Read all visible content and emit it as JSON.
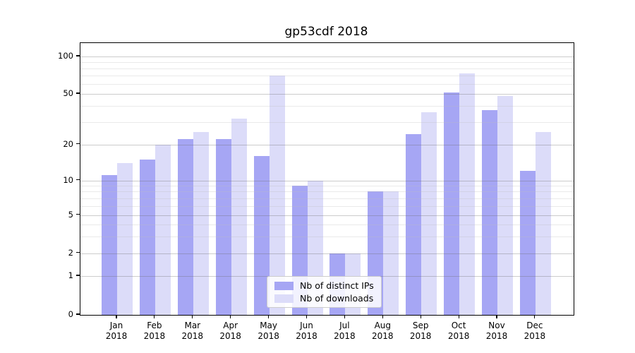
{
  "chart_data": {
    "type": "bar",
    "title": "gp53cdf 2018",
    "categories": [
      "Jan",
      "Feb",
      "Mar",
      "Apr",
      "May",
      "Jun",
      "Jul",
      "Aug",
      "Sep",
      "Oct",
      "Nov",
      "Dec"
    ],
    "x_sublabel_year": "2018",
    "series": [
      {
        "name": "Nb of distinct IPs",
        "color": "#a6a6f4",
        "values": [
          11,
          15,
          22,
          22,
          16,
          9,
          2,
          8,
          24,
          51,
          37,
          12
        ]
      },
      {
        "name": "Nb of downloads",
        "color": "#dcdcf9",
        "values": [
          14,
          20,
          25,
          32,
          70,
          10,
          2,
          8,
          36,
          73,
          48,
          25
        ]
      }
    ],
    "yticks": [
      0,
      1,
      2,
      5,
      10,
      20,
      50,
      100
    ],
    "yticks_minor": [
      3,
      4,
      6,
      7,
      8,
      9,
      30,
      40,
      60,
      70,
      80,
      90
    ],
    "yscale": "symlog",
    "grid": "on",
    "legend_position": "lower center"
  }
}
